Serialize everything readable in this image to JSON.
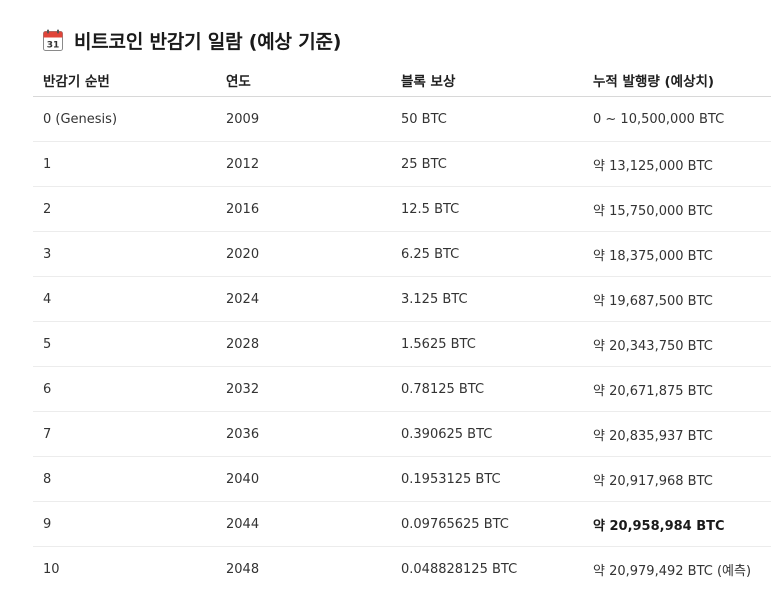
{
  "title": {
    "icon": "calendar-icon",
    "icon_day": "31",
    "text": "비트코인 반감기 일람 (예상 기준)"
  },
  "table": {
    "headers": [
      "반감기 순번",
      "연도",
      "블록 보상",
      "누적 발행량 (예상치)"
    ],
    "rows": [
      [
        "0 (Genesis)",
        "2009",
        "50 BTC",
        "0 ~ 10,500,000 BTC"
      ],
      [
        "1",
        "2012",
        "25 BTC",
        "약 13,125,000 BTC"
      ],
      [
        "2",
        "2016",
        "12.5 BTC",
        "약 15,750,000 BTC"
      ],
      [
        "3",
        "2020",
        "6.25 BTC",
        "약 18,375,000 BTC"
      ],
      [
        "4",
        "2024",
        "3.125 BTC",
        "약 19,687,500 BTC"
      ],
      [
        "5",
        "2028",
        "1.5625 BTC",
        "약 20,343,750 BTC"
      ],
      [
        "6",
        "2032",
        "0.78125 BTC",
        "약 20,671,875 BTC"
      ],
      [
        "7",
        "2036",
        "0.390625 BTC",
        "약 20,835,937 BTC"
      ],
      [
        "8",
        "2040",
        "0.1953125 BTC",
        "약 20,917,968 BTC"
      ],
      [
        "9",
        "2044",
        "0.09765625 BTC",
        "약 20,958,984 BTC"
      ],
      [
        "10",
        "2048",
        "0.048828125 BTC",
        "약 20,979,492 BTC (예측)"
      ]
    ],
    "bold_cell": "9-3"
  },
  "colors": {
    "calendar_header": "#e0453a",
    "text": "#333333",
    "divider": "#ececec"
  }
}
